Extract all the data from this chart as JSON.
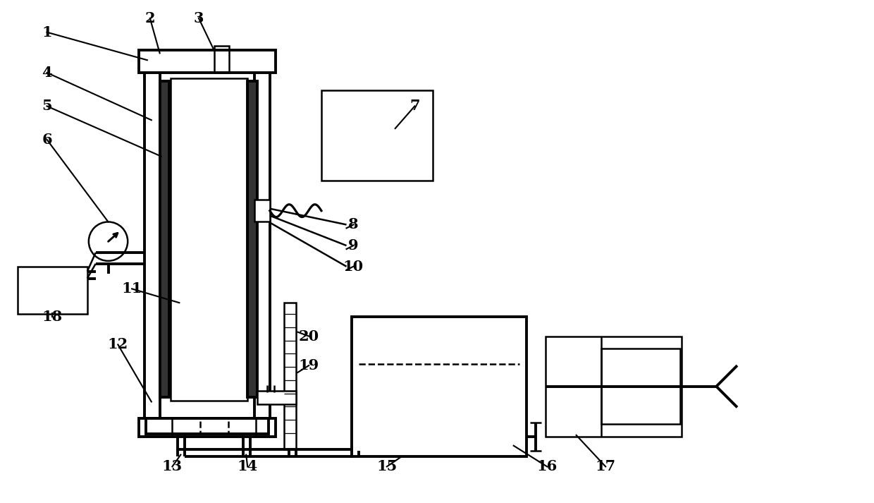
{
  "bg": "#ffffff",
  "lc": "#000000",
  "lw": 1.8,
  "lw2": 2.8,
  "fs": 15,
  "fig_w": 12.4,
  "fig_h": 7.13,
  "labels": [
    [
      "1",
      60,
      42
    ],
    [
      "2",
      208,
      22
    ],
    [
      "3",
      278,
      22
    ],
    [
      "4",
      60,
      100
    ],
    [
      "5",
      60,
      148
    ],
    [
      "6",
      60,
      196
    ],
    [
      "7",
      588,
      148
    ],
    [
      "8",
      500,
      318
    ],
    [
      "9",
      500,
      348
    ],
    [
      "10",
      500,
      378
    ],
    [
      "11",
      182,
      410
    ],
    [
      "12",
      162,
      490
    ],
    [
      "13",
      240,
      665
    ],
    [
      "14",
      348,
      665
    ],
    [
      "15",
      548,
      665
    ],
    [
      "16",
      778,
      665
    ],
    [
      "17",
      862,
      665
    ],
    [
      "18",
      68,
      450
    ],
    [
      "19",
      436,
      520
    ],
    [
      "20",
      436,
      478
    ]
  ]
}
